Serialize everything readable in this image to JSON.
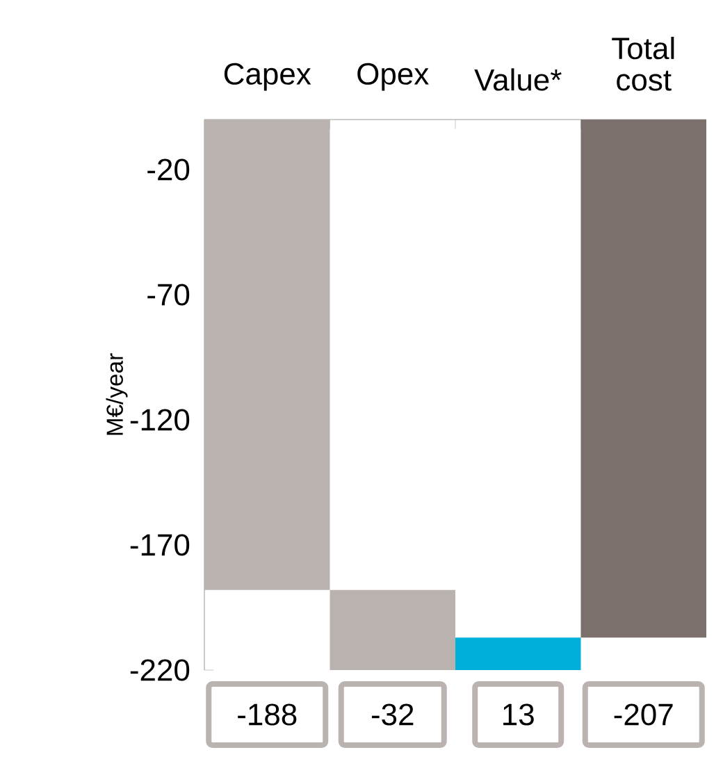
{
  "chart_data": {
    "type": "bar",
    "categories": [
      "Capex",
      "Opex",
      "Value*",
      "Total cost"
    ],
    "values": [
      -188,
      -32,
      13,
      -207
    ],
    "base": [
      0,
      -188,
      -220,
      0
    ],
    "colors": [
      "#bab2af",
      "#bab2af",
      "#00b0da",
      "#7b706b"
    ],
    "ylabel": "M€/year",
    "ylim": [
      -220,
      0
    ],
    "yticks": [
      -20,
      -70,
      -120,
      -170,
      -220
    ],
    "data_labels": true
  }
}
